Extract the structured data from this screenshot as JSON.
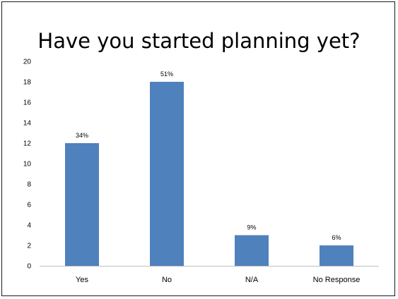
{
  "chart_data": {
    "type": "bar",
    "title": "Have you started planning yet?",
    "xlabel": "",
    "ylabel": "",
    "categories": [
      "Yes",
      "No",
      "N/A",
      "No Response"
    ],
    "values": [
      12,
      18,
      3,
      2
    ],
    "data_labels": [
      "34%",
      "51%",
      "9%",
      "6%"
    ],
    "ylim": [
      0,
      20
    ],
    "y_ticks": [
      0,
      2,
      4,
      6,
      8,
      10,
      12,
      14,
      16,
      18,
      20
    ],
    "grid": false,
    "legend": "none",
    "bar_color": "#4f81bd"
  }
}
